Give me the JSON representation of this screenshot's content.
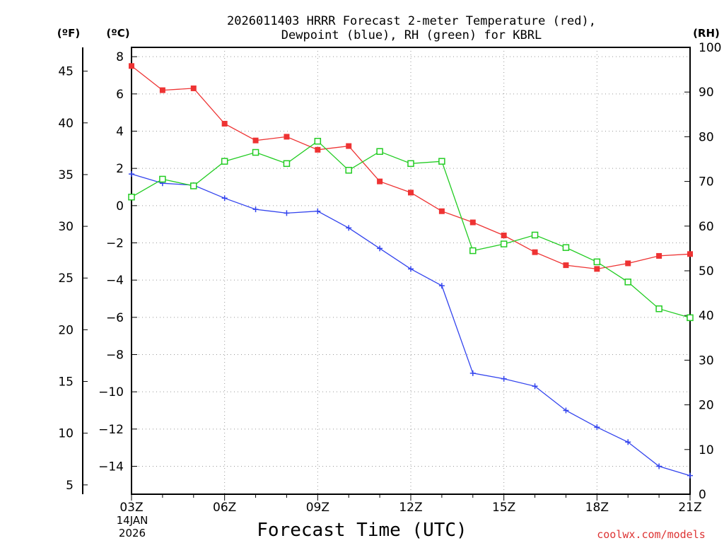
{
  "chart_data": {
    "type": "line",
    "title_line1": "2026011403 HRRR Forecast 2-meter Temperature (red),",
    "title_line2": "Dewpoint (blue), RH (green) for KBRL",
    "xlabel": "Forecast Time (UTC)",
    "watermark": "coolwx.com/models",
    "unit_labels": {
      "fahrenheit": "(ºF)",
      "celsius": "(ºC)",
      "rh": "(RH)"
    },
    "date_label": {
      "day": "14JAN",
      "year": "2026"
    },
    "x_hours": [
      0,
      1,
      2,
      3,
      4,
      5,
      6,
      7,
      8,
      9,
      10,
      11,
      12,
      13,
      14,
      15,
      16,
      17,
      18
    ],
    "x_ticks": [
      {
        "hour": 0,
        "label": "03Z"
      },
      {
        "hour": 3,
        "label": "06Z"
      },
      {
        "hour": 6,
        "label": "09Z"
      },
      {
        "hour": 9,
        "label": "12Z"
      },
      {
        "hour": 12,
        "label": "15Z"
      },
      {
        "hour": 15,
        "label": "18Z"
      },
      {
        "hour": 18,
        "label": "21Z"
      }
    ],
    "celsius_axis": {
      "range": [
        -15.5,
        8.5
      ],
      "ticks": [
        8,
        6,
        4,
        2,
        0,
        -2,
        -4,
        -6,
        -8,
        -10,
        -12,
        -14
      ],
      "labels": [
        "8",
        "6",
        "4",
        "2",
        "0",
        "−2",
        "−4",
        "−6",
        "−8",
        "−10",
        "−12",
        "−14"
      ]
    },
    "fahrenheit_axis": {
      "ticks": [
        45,
        40,
        35,
        30,
        25,
        20,
        15,
        10,
        5
      ],
      "labels": [
        "45",
        "40",
        "35",
        "30",
        "25",
        "20",
        "15",
        "10",
        "5"
      ]
    },
    "rh_axis": {
      "range": [
        0,
        100
      ],
      "ticks": [
        100,
        90,
        80,
        70,
        60,
        50,
        40,
        30,
        20,
        10,
        0
      ],
      "labels": [
        "100",
        "90",
        "80",
        "70",
        "60",
        "50",
        "40",
        "30",
        "20",
        "10",
        "0"
      ]
    },
    "series": [
      {
        "name": "Temperature",
        "unit": "C",
        "color": "#ee3333",
        "marker": "filled-square",
        "values": [
          7.5,
          6.2,
          6.3,
          4.4,
          3.5,
          3.7,
          3.0,
          3.2,
          1.3,
          0.7,
          -0.3,
          -0.9,
          -1.6,
          -2.5,
          -3.2,
          -3.4,
          -3.1,
          -2.7,
          -2.6
        ]
      },
      {
        "name": "Dewpoint",
        "unit": "C",
        "color": "#3344ee",
        "marker": "plus",
        "values": [
          1.7,
          1.2,
          1.1,
          0.4,
          -0.2,
          -0.4,
          -0.3,
          -1.2,
          -2.3,
          -3.4,
          -4.3,
          -9.0,
          -9.3,
          -9.7,
          -11.0,
          -11.9,
          -12.7,
          -14.0,
          -14.5
        ]
      },
      {
        "name": "RH",
        "unit": "%",
        "color": "#22cc22",
        "marker": "open-square",
        "values": [
          66.5,
          70.5,
          69.0,
          74.5,
          76.5,
          74.0,
          79.0,
          72.5,
          76.7,
          74.0,
          74.5,
          54.5,
          56.0,
          58.0,
          55.2,
          52.0,
          47.5,
          41.5,
          39.5
        ]
      }
    ]
  }
}
